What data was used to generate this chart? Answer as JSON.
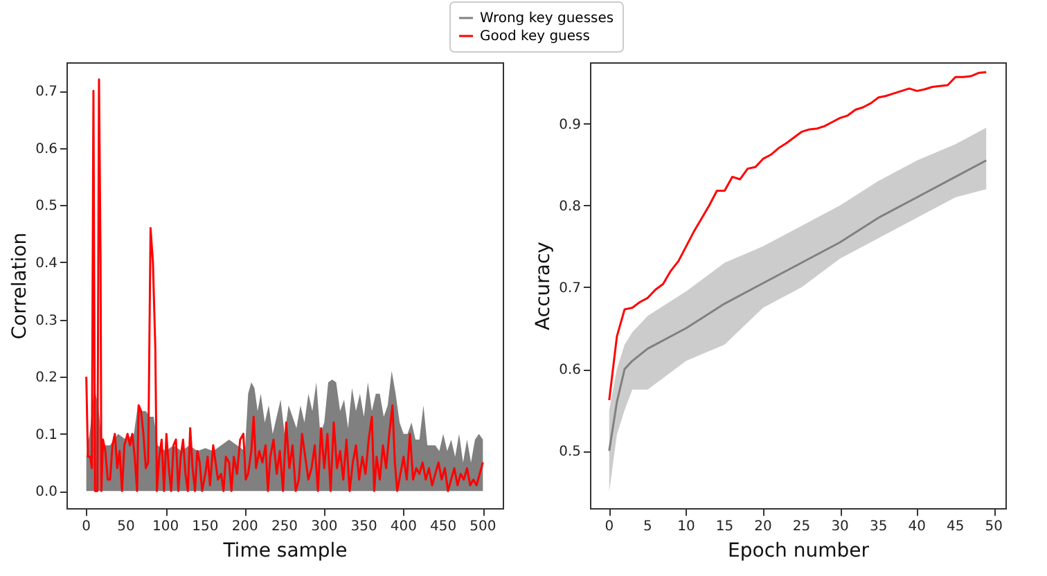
{
  "chart_data": [
    {
      "type": "line",
      "xlabel": "Time sample",
      "ylabel": "Correlation",
      "xlim": [
        -25,
        525
      ],
      "ylim": [
        -0.03,
        0.75
      ],
      "xticks": [
        0,
        50,
        100,
        150,
        200,
        250,
        300,
        350,
        400,
        450,
        500
      ],
      "yticks": [
        {
          "value": 0,
          "label": "0.0"
        },
        0.1,
        0.2,
        0.3,
        0.4,
        0.5,
        0.6,
        0.7
      ],
      "legend": "top",
      "series": [
        {
          "name": "Wrong key guesses",
          "type": "area",
          "color": "#808080",
          "x": [
            0,
            5,
            10,
            15,
            20,
            30,
            40,
            50,
            60,
            65,
            70,
            75,
            80,
            85,
            90,
            100,
            110,
            120,
            130,
            140,
            150,
            160,
            170,
            180,
            190,
            200,
            204,
            208,
            212,
            216,
            220,
            225,
            230,
            235,
            240,
            245,
            250,
            255,
            260,
            265,
            270,
            275,
            280,
            285,
            290,
            295,
            300,
            305,
            310,
            315,
            320,
            325,
            330,
            335,
            340,
            345,
            350,
            355,
            360,
            365,
            370,
            375,
            380,
            385,
            390,
            395,
            400,
            405,
            410,
            415,
            420,
            425,
            430,
            435,
            440,
            445,
            450,
            455,
            460,
            465,
            470,
            475,
            480,
            485,
            490,
            495,
            500
          ],
          "values": [
            0.06,
            0.11,
            0.18,
            0.15,
            0.08,
            0.08,
            0.1,
            0.09,
            0.1,
            0.15,
            0.14,
            0.14,
            0.13,
            0.13,
            0.08,
            0.07,
            0.08,
            0.07,
            0.08,
            0.07,
            0.075,
            0.07,
            0.08,
            0.09,
            0.08,
            0.07,
            0.17,
            0.19,
            0.18,
            0.14,
            0.17,
            0.12,
            0.15,
            0.1,
            0.13,
            0.16,
            0.1,
            0.15,
            0.13,
            0.11,
            0.15,
            0.12,
            0.17,
            0.14,
            0.19,
            0.1,
            0.12,
            0.19,
            0.195,
            0.19,
            0.14,
            0.16,
            0.11,
            0.18,
            0.14,
            0.17,
            0.13,
            0.19,
            0.14,
            0.17,
            0.17,
            0.13,
            0.15,
            0.21,
            0.17,
            0.12,
            0.1,
            0.1,
            0.12,
            0.09,
            0.09,
            0.15,
            0.08,
            0.08,
            0.08,
            0.07,
            0.1,
            0.07,
            0.09,
            0.06,
            0.1,
            0.05,
            0.09,
            0.05,
            0.09,
            0.1,
            0.09
          ]
        },
        {
          "name": "Good key guess",
          "type": "line",
          "color": "#ff0000",
          "x": [
            0,
            2,
            5,
            7,
            9,
            11,
            14,
            16,
            18,
            19,
            21,
            24,
            27,
            30,
            33,
            36,
            39,
            42,
            45,
            48,
            52,
            55,
            58,
            61,
            64,
            66,
            69,
            72,
            75,
            78,
            81,
            84,
            87,
            89,
            92,
            95,
            98,
            101,
            104,
            107,
            110,
            113,
            116,
            119,
            122,
            125,
            128,
            131,
            134,
            137,
            140,
            143,
            146,
            150,
            153,
            156,
            160,
            163,
            166,
            170,
            173,
            176,
            180,
            183,
            186,
            190,
            194,
            198,
            201,
            204,
            208,
            211,
            214,
            218,
            222,
            226,
            229,
            232,
            236,
            240,
            244,
            248,
            252,
            256,
            260,
            264,
            268,
            272,
            276,
            280,
            284,
            288,
            292,
            296,
            300,
            304,
            308,
            312,
            316,
            320,
            324,
            328,
            332,
            336,
            340,
            344,
            348,
            352,
            356,
            360,
            363,
            366,
            370,
            374,
            378,
            382,
            386,
            389,
            392,
            396,
            400,
            404,
            408,
            412,
            416,
            420,
            424,
            428,
            432,
            436,
            440,
            444,
            448,
            452,
            456,
            460,
            464,
            468,
            472,
            476,
            480,
            484,
            488,
            492,
            496,
            500
          ],
          "values": [
            0.2,
            0.06,
            0.06,
            0.04,
            0.7,
            0.0,
            0.0,
            0.72,
            0.4,
            0.0,
            0.09,
            0.07,
            0.02,
            0.02,
            0.08,
            0.1,
            0.04,
            0.07,
            0.0,
            0.08,
            0.1,
            0.08,
            0.1,
            0.06,
            0.0,
            0.15,
            0.14,
            0.1,
            0.04,
            0.05,
            0.46,
            0.4,
            0.25,
            0.0,
            0.06,
            0.09,
            0.0,
            0.1,
            0.04,
            0.0,
            0.08,
            0.09,
            0.0,
            0.06,
            0.09,
            0.03,
            0.0,
            0.11,
            0.04,
            0.0,
            0.07,
            0.05,
            0.0,
            0.03,
            0.06,
            0.01,
            0.08,
            0.05,
            0.02,
            0.03,
            0.0,
            0.06,
            0.05,
            0.0,
            0.06,
            0.03,
            0.09,
            0.1,
            0.02,
            0.03,
            0.07,
            0.13,
            0.04,
            0.07,
            0.05,
            0.08,
            0.0,
            0.06,
            0.09,
            0.03,
            0.07,
            0.0,
            0.12,
            0.04,
            0.08,
            0.0,
            0.02,
            0.1,
            0.06,
            0.02,
            0.04,
            0.08,
            0.0,
            0.11,
            0.04,
            0.1,
            0.0,
            0.12,
            0.04,
            0.07,
            0.02,
            0.09,
            0.0,
            0.05,
            0.08,
            0.02,
            0.06,
            0.03,
            0.09,
            0.13,
            0.0,
            0.06,
            0.02,
            0.08,
            0.04,
            0.1,
            0.15,
            0.05,
            0.0,
            0.03,
            0.06,
            0.02,
            0.1,
            0.02,
            0.04,
            0.03,
            0.05,
            0.02,
            0.04,
            0.01,
            0.03,
            0.05,
            0.02,
            0.04,
            0.0,
            0.02,
            0.04,
            0.01,
            0.03,
            0.02,
            0.04,
            0.01,
            0.02,
            0.01,
            0.03,
            0.05
          ]
        }
      ]
    },
    {
      "type": "line",
      "xlabel": "Epoch number",
      "ylabel": "Accuracy",
      "xlim": [
        -2.5,
        51.5
      ],
      "ylim": [
        0.43,
        0.975
      ],
      "xticks": [
        0,
        5,
        10,
        15,
        20,
        25,
        30,
        35,
        40,
        45,
        50
      ],
      "yticks": [
        0.5,
        0.6,
        0.7,
        0.8,
        0.9
      ],
      "series": [
        {
          "type": "line",
          "color": "#808080",
          "x": [
            0,
            1,
            2,
            3,
            5,
            10,
            15,
            20,
            25,
            30,
            35,
            40,
            45,
            49
          ],
          "values": [
            0.5,
            0.56,
            0.6,
            0.61,
            0.625,
            0.65,
            0.68,
            0.705,
            0.73,
            0.755,
            0.785,
            0.81,
            0.835,
            0.855
          ],
          "lower": [
            0.45,
            0.52,
            0.55,
            0.575,
            0.575,
            0.61,
            0.63,
            0.675,
            0.7,
            0.735,
            0.76,
            0.785,
            0.81,
            0.82
          ],
          "upper": [
            0.55,
            0.6,
            0.63,
            0.645,
            0.665,
            0.695,
            0.73,
            0.75,
            0.775,
            0.8,
            0.83,
            0.855,
            0.875,
            0.895
          ]
        },
        {
          "type": "line",
          "color": "#ff0000",
          "x": [
            0,
            1,
            2,
            3,
            4,
            5,
            6,
            7,
            8,
            9,
            10,
            11,
            12,
            13,
            14,
            15,
            16,
            17,
            18,
            19,
            20,
            21,
            22,
            23,
            24,
            25,
            26,
            27,
            28,
            29,
            30,
            31,
            32,
            33,
            34,
            35,
            36,
            37,
            38,
            39,
            40,
            41,
            42,
            43,
            44,
            45,
            46,
            47,
            48,
            49
          ],
          "values": [
            0.562,
            0.64,
            0.673,
            0.675,
            0.682,
            0.687,
            0.697,
            0.704,
            0.72,
            0.732,
            0.75,
            0.768,
            0.784,
            0.8,
            0.818,
            0.818,
            0.835,
            0.832,
            0.845,
            0.847,
            0.857,
            0.862,
            0.87,
            0.876,
            0.883,
            0.89,
            0.893,
            0.894,
            0.897,
            0.902,
            0.907,
            0.91,
            0.917,
            0.92,
            0.925,
            0.932,
            0.934,
            0.937,
            0.94,
            0.943,
            0.94,
            0.942,
            0.945,
            0.946,
            0.947,
            0.957,
            0.957,
            0.958,
            0.962,
            0.963
          ]
        }
      ]
    }
  ]
}
